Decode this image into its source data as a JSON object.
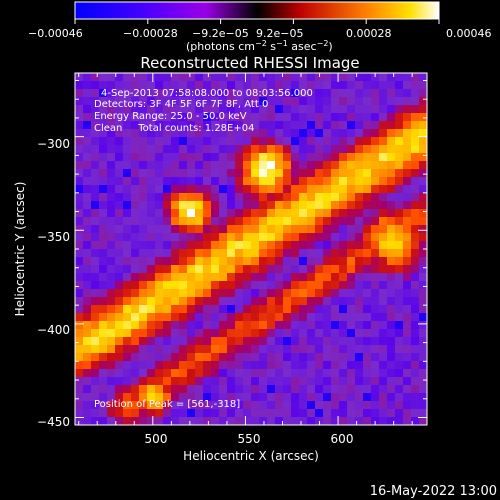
{
  "chart_data": {
    "type": "heatmap",
    "title": "Reconstructed RHESSI Image",
    "xlabel": "Heliocentric X (arcsec)",
    "ylabel": "Heliocentric Y (arcsec)",
    "xlim": [
      458,
      648
    ],
    "ylim": [
      -454,
      -266
    ],
    "xticks": [
      500,
      550,
      600
    ],
    "yticks": [
      -300,
      -350,
      -400,
      -450
    ],
    "xtick_labels": [
      "500",
      "550",
      "600"
    ],
    "ytick_labels": [
      "−300",
      "−350",
      "−400",
      "−450"
    ],
    "colorbar": {
      "range": [
        -0.00046,
        0.00046
      ],
      "tick_labels": [
        "−0.00046",
        "−0.00028",
        "−9.2e−05",
        "9.2e−05",
        "0.00028",
        "0.00046"
      ],
      "unit_line1": "(photons cm",
      "unit_sup1": "−2",
      "unit_line2": " s",
      "unit_sup2": "−1",
      "unit_line3": " asec",
      "unit_sup3": "−2",
      "unit_end": ")"
    },
    "colormap": [
      "#0000ff",
      "#5500ee",
      "#7a2bcc",
      "#a00070",
      "#cc1010",
      "#ff5000",
      "#ff9d00",
      "#ffe200",
      "#ffffff"
    ],
    "background_color": "#5a2ea0",
    "features": [
      {
        "kind": "ridge",
        "from": [
          462,
          -412
        ],
        "to": [
          648,
          -298
        ],
        "width": 26,
        "peak": 0.85
      },
      {
        "kind": "ridge",
        "from": [
          485,
          -445
        ],
        "to": [
          648,
          -340
        ],
        "width": 18,
        "peak": 0.6
      },
      {
        "kind": "blob",
        "center": [
          561,
          -318
        ],
        "sigma": 12,
        "peak": 1.0
      },
      {
        "kind": "blob",
        "center": [
          520,
          -340
        ],
        "sigma": 10,
        "peak": 0.95
      },
      {
        "kind": "blob",
        "center": [
          630,
          -355
        ],
        "sigma": 14,
        "peak": 0.85
      },
      {
        "kind": "blob",
        "center": [
          500,
          -438
        ],
        "sigma": 9,
        "peak": 0.85
      }
    ]
  },
  "annotations": {
    "time_range": "4-Sep-2013 07:58:08.000 to 08:03:56.000",
    "detectors": "Detectors: 3F 4F 5F 6F 7F 8F, Att 0",
    "energy": "Energy Range: 25.0 - 50.0 keV",
    "clean": "Clean     Total counts: 1.28E+04",
    "peak": "Position of Peak = [561,-318]"
  },
  "footer": {
    "date": "16-May-2022 13:00"
  }
}
